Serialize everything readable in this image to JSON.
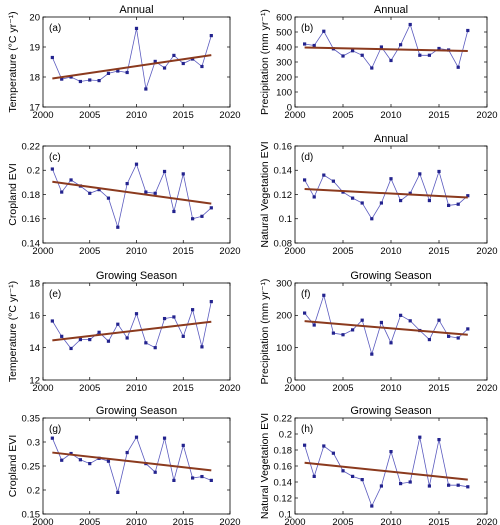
{
  "colors": {
    "series": "#5b5bbf",
    "marker": "#23238e",
    "trend": "#8b3a1e",
    "axis": "#000000"
  },
  "chart_data": [
    {
      "type": "line",
      "panel": "(a)",
      "title": "Annual",
      "ylabel": "Temperature (°C yr⁻¹)",
      "xlim": [
        2000,
        2020
      ],
      "ylim": [
        17,
        20
      ],
      "xticks": [
        2000,
        2005,
        2010,
        2015,
        2020
      ],
      "yticks": [
        17,
        18,
        19,
        20
      ],
      "x": [
        2001,
        2002,
        2003,
        2004,
        2005,
        2006,
        2007,
        2008,
        2009,
        2010,
        2011,
        2012,
        2013,
        2014,
        2015,
        2016,
        2017,
        2018
      ],
      "values": [
        18.65,
        17.93,
        18.0,
        17.85,
        17.9,
        17.88,
        18.12,
        18.2,
        18.15,
        19.62,
        17.6,
        18.52,
        18.3,
        18.72,
        18.45,
        18.6,
        18.35,
        19.38
      ],
      "trend": [
        17.95,
        18.73
      ]
    },
    {
      "type": "line",
      "panel": "(b)",
      "title": "Annual",
      "ylabel": "Precipitation (mm yr⁻¹)",
      "xlim": [
        2000,
        2020
      ],
      "ylim": [
        0,
        600
      ],
      "xticks": [
        2000,
        2005,
        2010,
        2015,
        2020
      ],
      "yticks": [
        0,
        100,
        200,
        300,
        400,
        500,
        600
      ],
      "x": [
        2001,
        2002,
        2003,
        2004,
        2005,
        2006,
        2007,
        2008,
        2009,
        2010,
        2011,
        2012,
        2013,
        2014,
        2015,
        2016,
        2017,
        2018
      ],
      "values": [
        420,
        410,
        505,
        388,
        340,
        375,
        345,
        260,
        400,
        310,
        415,
        550,
        345,
        345,
        390,
        380,
        265,
        510
      ],
      "trend": [
        397,
        373
      ]
    },
    {
      "type": "line",
      "panel": "(c)",
      "title": "",
      "ylabel": "Cropland EVI",
      "xlim": [
        2000,
        2020
      ],
      "ylim": [
        0.14,
        0.22
      ],
      "xticks": [
        2000,
        2005,
        2010,
        2015,
        2020
      ],
      "yticks": [
        0.14,
        0.16,
        0.18,
        0.2,
        0.22
      ],
      "x": [
        2001,
        2002,
        2003,
        2004,
        2005,
        2006,
        2007,
        2008,
        2009,
        2010,
        2011,
        2012,
        2013,
        2014,
        2015,
        2016,
        2017,
        2018
      ],
      "values": [
        0.201,
        0.182,
        0.192,
        0.187,
        0.181,
        0.184,
        0.177,
        0.153,
        0.189,
        0.205,
        0.182,
        0.181,
        0.199,
        0.166,
        0.197,
        0.16,
        0.162,
        0.169
      ],
      "trend": [
        0.1905,
        0.1725
      ]
    },
    {
      "type": "line",
      "panel": "(d)",
      "title": "Annual",
      "ylabel": "Natural Vegetation EVI",
      "xlim": [
        2000,
        2020
      ],
      "ylim": [
        0.08,
        0.16
      ],
      "xticks": [
        2000,
        2005,
        2010,
        2015,
        2020
      ],
      "yticks": [
        0.08,
        0.1,
        0.12,
        0.14,
        0.16
      ],
      "x": [
        2001,
        2002,
        2003,
        2004,
        2005,
        2006,
        2007,
        2008,
        2009,
        2010,
        2011,
        2012,
        2013,
        2014,
        2015,
        2016,
        2017,
        2018
      ],
      "values": [
        0.132,
        0.118,
        0.136,
        0.131,
        0.122,
        0.117,
        0.113,
        0.1,
        0.113,
        0.133,
        0.115,
        0.121,
        0.137,
        0.115,
        0.139,
        0.111,
        0.112,
        0.119
      ],
      "trend": [
        0.1245,
        0.1175
      ]
    },
    {
      "type": "line",
      "panel": "(e)",
      "title": "Growing Season",
      "ylabel": "Temperature (°C yr⁻¹)",
      "xlim": [
        2000,
        2020
      ],
      "ylim": [
        12,
        18
      ],
      "xticks": [
        2000,
        2005,
        2010,
        2015,
        2020
      ],
      "yticks": [
        12,
        14,
        16,
        18
      ],
      "x": [
        2001,
        2002,
        2003,
        2004,
        2005,
        2006,
        2007,
        2008,
        2009,
        2010,
        2011,
        2012,
        2013,
        2014,
        2015,
        2016,
        2017,
        2018
      ],
      "values": [
        15.65,
        14.7,
        13.95,
        14.5,
        14.5,
        14.95,
        14.4,
        15.45,
        14.6,
        16.1,
        14.3,
        14.0,
        15.8,
        15.9,
        14.7,
        16.35,
        14.05,
        16.85
      ],
      "trend": [
        14.45,
        15.6
      ]
    },
    {
      "type": "line",
      "panel": "(f)",
      "title": "Growing Season",
      "ylabel": "Precipitation (mm yr⁻¹)",
      "xlim": [
        2000,
        2020
      ],
      "ylim": [
        0,
        300
      ],
      "xticks": [
        2000,
        2005,
        2010,
        2015,
        2020
      ],
      "yticks": [
        0,
        100,
        200,
        300
      ],
      "x": [
        2001,
        2002,
        2003,
        2004,
        2005,
        2006,
        2007,
        2008,
        2009,
        2010,
        2011,
        2012,
        2013,
        2014,
        2015,
        2016,
        2017,
        2018
      ],
      "values": [
        207,
        170,
        262,
        145,
        140,
        155,
        185,
        80,
        178,
        115,
        200,
        183,
        153,
        125,
        185,
        135,
        130,
        158
      ],
      "trend": [
        182,
        140
      ]
    },
    {
      "type": "line",
      "panel": "(g)",
      "title": "Growing Season",
      "ylabel": "Cropland EVI",
      "xlim": [
        2000,
        2020
      ],
      "ylim": [
        0.15,
        0.35
      ],
      "xticks": [
        2000,
        2005,
        2010,
        2015,
        2020
      ],
      "yticks": [
        0.15,
        0.2,
        0.25,
        0.3,
        0.35
      ],
      "x": [
        2001,
        2002,
        2003,
        2004,
        2005,
        2006,
        2007,
        2008,
        2009,
        2010,
        2011,
        2012,
        2013,
        2014,
        2015,
        2016,
        2017,
        2018
      ],
      "values": [
        0.308,
        0.262,
        0.276,
        0.263,
        0.255,
        0.266,
        0.26,
        0.195,
        0.278,
        0.31,
        0.255,
        0.237,
        0.308,
        0.22,
        0.293,
        0.225,
        0.228,
        0.22
      ],
      "trend": [
        0.278,
        0.241
      ]
    },
    {
      "type": "line",
      "panel": "(h)",
      "title": "Growing Season",
      "ylabel": "Natural Vegetation EVI",
      "xlim": [
        2000,
        2020
      ],
      "ylim": [
        0.1,
        0.22
      ],
      "xticks": [
        2000,
        2005,
        2010,
        2015,
        2020
      ],
      "yticks": [
        0.1,
        0.12,
        0.14,
        0.16,
        0.18,
        0.2,
        0.22
      ],
      "x": [
        2001,
        2002,
        2003,
        2004,
        2005,
        2006,
        2007,
        2008,
        2009,
        2010,
        2011,
        2012,
        2013,
        2014,
        2015,
        2016,
        2017,
        2018
      ],
      "values": [
        0.186,
        0.147,
        0.185,
        0.176,
        0.154,
        0.147,
        0.143,
        0.11,
        0.135,
        0.178,
        0.138,
        0.14,
        0.196,
        0.135,
        0.193,
        0.136,
        0.136,
        0.134
      ],
      "trend": [
        0.164,
        0.143
      ]
    }
  ]
}
